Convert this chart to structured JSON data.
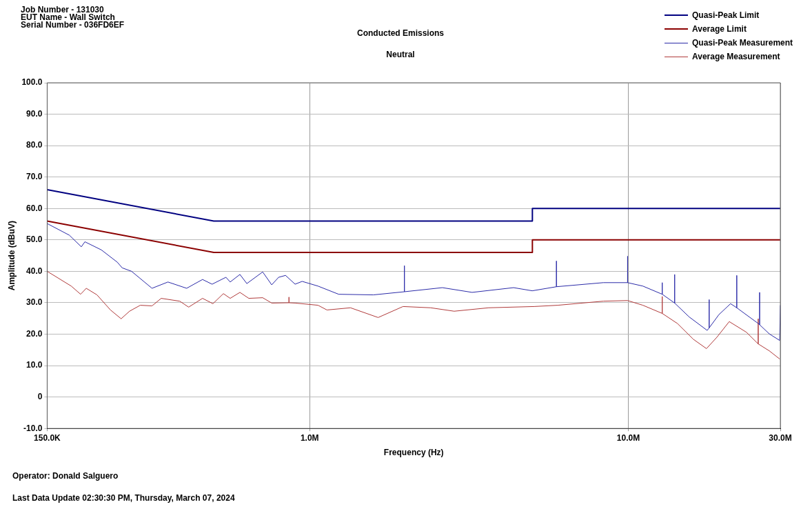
{
  "chart_data": {
    "type": "line",
    "title": "Conducted Emissions",
    "subtitle": "Neutral",
    "xlabel": "Frequency (Hz)",
    "ylabel": "Amplitude (dBuV)",
    "annotations": [
      "Job Number - 131030",
      "EUT Name - Wall Switch",
      "Serial Number - 036FD6EF",
      "Operator: Donald Salguero",
      "Last Data Update 02:30:30 PM, Thursday, March 07, 2024"
    ],
    "log": "x",
    "grid": true,
    "legend": "top right",
    "marker": "none",
    "line_style": "solid",
    "xlim": [
      150000,
      30000000
    ],
    "xticks": [
      {
        "value": 150000,
        "label": "150.0K"
      },
      {
        "value": 1000000,
        "label": "1.0M"
      },
      {
        "value": 10000000,
        "label": "10.0M"
      },
      {
        "value": 30000000,
        "label": "30.0M"
      }
    ],
    "ylim": [
      -10,
      100
    ],
    "yticks": [
      {
        "value": -10,
        "label": "-10.0"
      },
      0,
      {
        "value": 10,
        "label": "10.0"
      },
      {
        "value": 20,
        "label": "20.0"
      },
      {
        "value": 30,
        "label": "30.0"
      },
      {
        "value": 40,
        "label": "40.0"
      },
      {
        "value": 50,
        "label": "50.0"
      },
      {
        "value": 60,
        "label": "60.0"
      },
      {
        "value": 70,
        "label": "70.0"
      },
      {
        "value": 80,
        "label": "80.0"
      },
      {
        "value": 90,
        "label": "90.0"
      },
      {
        "value": 100,
        "label": "100.0"
      }
    ],
    "series": [
      {
        "name": "Quasi-Peak Limit",
        "color": "#000080",
        "x": [
          150000,
          500000,
          5000000,
          5000000,
          30000000
        ],
        "values": [
          66,
          56,
          56,
          60,
          60
        ]
      },
      {
        "name": "Average Limit",
        "color": "#8b0000",
        "x": [
          150000,
          500000,
          5000000,
          5000000,
          30000000
        ],
        "values": [
          56,
          46,
          46,
          50,
          50
        ]
      },
      {
        "name": "Quasi-Peak Measurement",
        "color": "#2a2aa8",
        "x": [
          150000,
          176000,
          192000,
          197000,
          222000,
          249000,
          258000,
          276000,
          320000,
          359000,
          411000,
          461000,
          494000,
          546000,
          563000,
          604000,
          635000,
          712000,
          760000,
          799000,
          840000,
          900000,
          947000,
          1062000,
          1233000,
          1583000,
          1983000,
          1983000,
          1983000,
          2609000,
          3234000,
          4364000,
          4995000,
          5949000,
          5949000,
          5949000,
          8355000,
          9949000,
          9949000,
          9949000,
          11110000,
          12780000,
          12780000,
          12780000,
          13980000,
          13980000,
          13980000,
          15520000,
          17680000,
          17940000,
          17940000,
          17940000,
          19240000,
          20940000,
          21900000,
          21900000,
          21900000,
          25570000,
          25830000,
          25830000,
          25830000,
          27700000,
          29860000,
          30000000
        ],
        "values": [
          55.2,
          51.5,
          47.8,
          49.4,
          46.8,
          42.9,
          41.1,
          40.0,
          34.6,
          36.6,
          34.6,
          37.4,
          35.9,
          38.1,
          36.6,
          39.0,
          36.1,
          39.8,
          35.7,
          38.1,
          38.7,
          35.9,
          36.8,
          35.3,
          32.7,
          32.5,
          33.5,
          41.8,
          33.5,
          34.8,
          33.3,
          34.8,
          33.8,
          35.1,
          43.3,
          35.1,
          36.4,
          36.4,
          44.8,
          36.4,
          35.3,
          32.7,
          36.4,
          32.7,
          29.9,
          39.0,
          29.9,
          25.5,
          21.2,
          22.0,
          31.0,
          22.0,
          26.2,
          29.7,
          28.4,
          38.7,
          28.4,
          23.4,
          23.0,
          33.3,
          23.0,
          20.1,
          18.0,
          29.2
        ]
      },
      {
        "name": "Average Measurement",
        "color": "#b03a3a",
        "x": [
          150000,
          178500,
          191000,
          199000,
          215000,
          237000,
          256000,
          272000,
          294000,
          320000,
          342000,
          391000,
          417000,
          461000,
          497000,
          536000,
          563000,
          604000,
          644000,
          712000,
          760000,
          861000,
          861000,
          861000,
          900000,
          1062000,
          1133000,
          1343000,
          1640000,
          1963000,
          2397000,
          2841000,
          3646000,
          5070000,
          6008000,
          8355000,
          9949000,
          11110000,
          12780000,
          12780000,
          12780000,
          14260000,
          15990000,
          17590000,
          18960000,
          20740000,
          23490000,
          25570000,
          25570000,
          25570000,
          27700000,
          29860000
        ],
        "values": [
          40.0,
          35.3,
          32.7,
          34.6,
          32.5,
          27.7,
          24.9,
          27.3,
          29.2,
          29.0,
          31.4,
          30.5,
          28.6,
          31.4,
          29.7,
          32.9,
          31.4,
          33.3,
          31.4,
          31.6,
          29.9,
          30.0,
          31.8,
          30.0,
          29.9,
          29.2,
          27.7,
          28.4,
          25.3,
          28.8,
          28.4,
          27.3,
          28.4,
          28.8,
          29.2,
          30.5,
          30.7,
          29.2,
          26.6,
          32.0,
          26.6,
          23.4,
          18.4,
          15.4,
          19.0,
          24.0,
          20.6,
          16.9,
          24.9,
          16.9,
          14.7,
          12.1
        ]
      }
    ]
  }
}
